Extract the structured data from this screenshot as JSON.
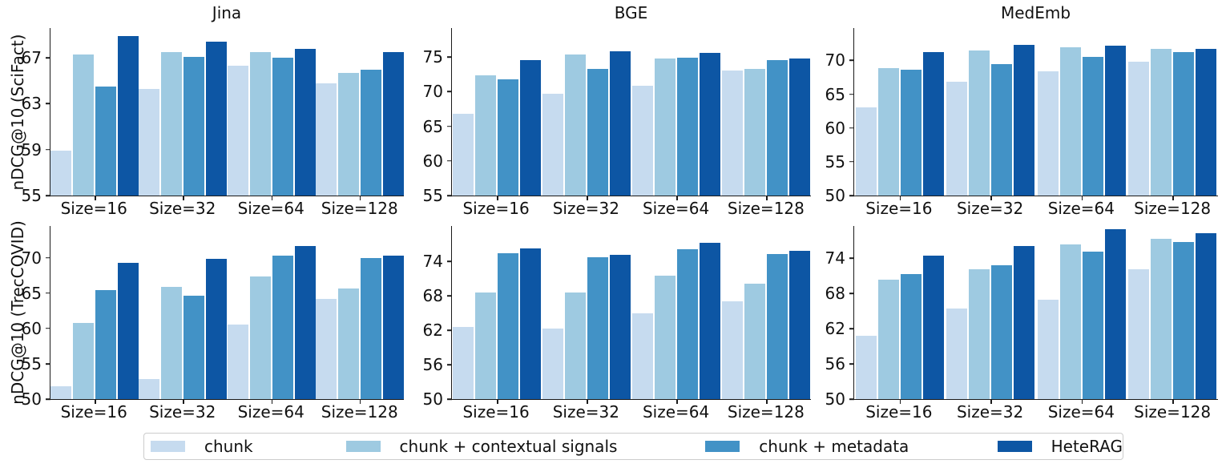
{
  "figure": {
    "background": "#ffffff",
    "axis_color": "#1a1a1a"
  },
  "colors": {
    "series": [
      "#c6dbef",
      "#9ecae1",
      "#4292c6",
      "#0d56a4"
    ]
  },
  "legend": {
    "position": "bottom",
    "items": [
      {
        "label": "chunk",
        "color": "#c6dbef"
      },
      {
        "label": "chunk + contextual signals",
        "color": "#9ecae1"
      },
      {
        "label": "chunk + metadata",
        "color": "#4292c6"
      },
      {
        "label": "HeteRAG",
        "color": "#0d56a4"
      }
    ]
  },
  "chart_data": [
    {
      "type": "bar",
      "title": "Jina",
      "ylabel": "nDCG@10 (SciFact)",
      "grid": false,
      "categories": [
        "Size=16",
        "Size=32",
        "Size=64",
        "Size=128"
      ],
      "yticks": [
        55,
        59,
        63,
        67
      ],
      "ylim": [
        55,
        69.6
      ],
      "series": [
        {
          "name": "chunk",
          "values": [
            58.9,
            64.3,
            66.3,
            64.8
          ]
        },
        {
          "name": "chunk + contextual signals",
          "values": [
            67.3,
            67.5,
            67.5,
            65.7
          ]
        },
        {
          "name": "chunk + metadata",
          "values": [
            64.5,
            67.1,
            67.0,
            66.0
          ]
        },
        {
          "name": "HeteRAG",
          "values": [
            68.9,
            68.4,
            67.8,
            67.5
          ]
        }
      ]
    },
    {
      "type": "bar",
      "title": "BGE",
      "ylabel": "",
      "grid": false,
      "categories": [
        "Size=16",
        "Size=32",
        "Size=64",
        "Size=128"
      ],
      "yticks": [
        55,
        60,
        65,
        70,
        75
      ],
      "ylim": [
        55,
        79.2
      ],
      "series": [
        {
          "name": "chunk",
          "values": [
            66.8,
            69.7,
            70.9,
            73.1
          ]
        },
        {
          "name": "chunk + contextual signals",
          "values": [
            72.4,
            75.4,
            74.8,
            73.3
          ]
        },
        {
          "name": "chunk + metadata",
          "values": [
            71.8,
            73.3,
            74.9,
            74.6
          ]
        },
        {
          "name": "HeteRAG",
          "values": [
            74.6,
            75.9,
            75.6,
            74.8
          ]
        }
      ]
    },
    {
      "type": "bar",
      "title": "MedEmb",
      "ylabel": "",
      "grid": false,
      "categories": [
        "Size=16",
        "Size=32",
        "Size=64",
        "Size=128"
      ],
      "yticks": [
        50,
        55,
        60,
        65,
        70
      ],
      "ylim": [
        50,
        74.8
      ],
      "series": [
        {
          "name": "chunk",
          "values": [
            63.0,
            66.8,
            68.4,
            69.8
          ]
        },
        {
          "name": "chunk + contextual signals",
          "values": [
            68.9,
            71.5,
            71.9,
            71.7
          ]
        },
        {
          "name": "chunk + metadata",
          "values": [
            68.6,
            69.5,
            70.5,
            71.3
          ]
        },
        {
          "name": "HeteRAG",
          "values": [
            71.2,
            72.3,
            72.2,
            71.7
          ]
        }
      ]
    },
    {
      "type": "bar",
      "title": "",
      "ylabel": "nDCG@10 (TrecCOVID)",
      "grid": false,
      "categories": [
        "Size=16",
        "Size=32",
        "Size=64",
        "Size=128"
      ],
      "yticks": [
        50,
        55,
        60,
        65,
        70
      ],
      "ylim": [
        50,
        74.5
      ],
      "series": [
        {
          "name": "chunk",
          "values": [
            51.8,
            52.8,
            60.5,
            64.2
          ]
        },
        {
          "name": "chunk + contextual signals",
          "values": [
            60.8,
            65.9,
            67.4,
            65.6
          ]
        },
        {
          "name": "chunk + metadata",
          "values": [
            65.4,
            64.6,
            70.3,
            70.0
          ]
        },
        {
          "name": "HeteRAG",
          "values": [
            69.3,
            69.8,
            71.7,
            70.3
          ]
        }
      ]
    },
    {
      "type": "bar",
      "title": "",
      "ylabel": "",
      "grid": false,
      "categories": [
        "Size=16",
        "Size=32",
        "Size=64",
        "Size=128"
      ],
      "yticks": [
        50,
        56,
        62,
        68,
        74
      ],
      "ylim": [
        50,
        80.2
      ],
      "series": [
        {
          "name": "chunk",
          "values": [
            62.6,
            62.3,
            65.0,
            67.1
          ]
        },
        {
          "name": "chunk + contextual signals",
          "values": [
            68.6,
            68.6,
            71.5,
            70.2
          ]
        },
        {
          "name": "chunk + metadata",
          "values": [
            75.4,
            74.8,
            76.1,
            75.3
          ]
        },
        {
          "name": "HeteRAG",
          "values": [
            76.3,
            75.2,
            77.3,
            75.8
          ]
        }
      ]
    },
    {
      "type": "bar",
      "title": "",
      "ylabel": "",
      "grid": false,
      "categories": [
        "Size=16",
        "Size=32",
        "Size=64",
        "Size=128"
      ],
      "yticks": [
        50,
        56,
        62,
        68,
        74
      ],
      "ylim": [
        50,
        79.5
      ],
      "series": [
        {
          "name": "chunk",
          "values": [
            60.8,
            65.5,
            67.0,
            72.1
          ]
        },
        {
          "name": "chunk + contextual signals",
          "values": [
            70.3,
            72.1,
            76.3,
            77.3
          ]
        },
        {
          "name": "chunk + metadata",
          "values": [
            71.3,
            72.8,
            75.1,
            76.8
          ]
        },
        {
          "name": "HeteRAG",
          "values": [
            74.5,
            76.1,
            78.9,
            78.3
          ]
        }
      ]
    }
  ]
}
